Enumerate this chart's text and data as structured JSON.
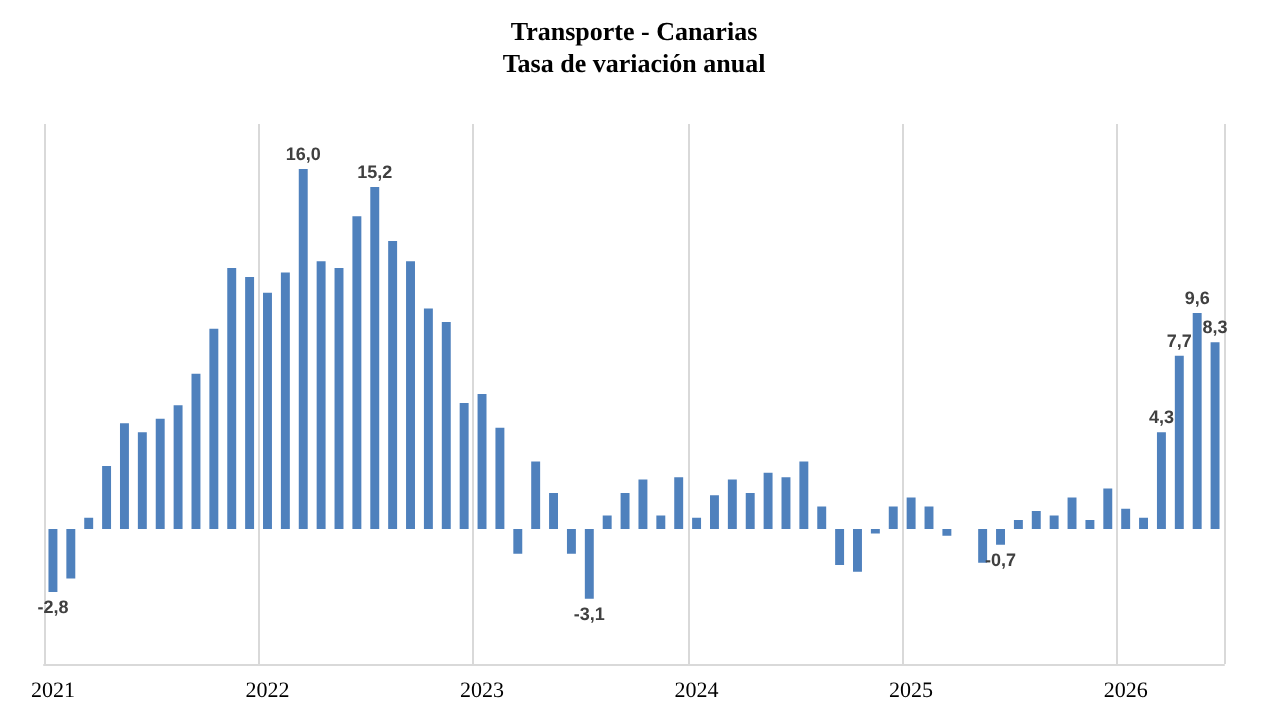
{
  "chart_data": {
    "type": "bar",
    "title": "Transporte - Canarias",
    "subtitle": "Tasa de variación anual",
    "categories": [
      "2021",
      null,
      null,
      null,
      null,
      null,
      null,
      null,
      null,
      null,
      null,
      null,
      "2022",
      null,
      null,
      null,
      null,
      null,
      null,
      null,
      null,
      null,
      null,
      null,
      "2023",
      null,
      null,
      null,
      null,
      null,
      null,
      null,
      null,
      null,
      null,
      null,
      "2024",
      null,
      null,
      null,
      null,
      null,
      null,
      null,
      null,
      null,
      null,
      null,
      "2025",
      null,
      null,
      null,
      null,
      null,
      null,
      null,
      null,
      null,
      null,
      null,
      "2026",
      null,
      null,
      null,
      null,
      null
    ],
    "values": [
      -2.8,
      -2.2,
      0.5,
      2.8,
      4.7,
      4.3,
      4.9,
      5.5,
      6.9,
      8.9,
      11.6,
      11.2,
      10.5,
      11.4,
      16.0,
      11.9,
      11.6,
      13.9,
      15.2,
      12.8,
      11.9,
      9.8,
      9.2,
      5.6,
      6.0,
      4.5,
      -1.1,
      3.0,
      1.6,
      -1.1,
      -3.1,
      0.6,
      1.6,
      2.2,
      0.6,
      2.3,
      0.5,
      1.5,
      2.2,
      1.6,
      2.5,
      2.3,
      3.0,
      1.0,
      -1.6,
      -1.9,
      -0.2,
      1.0,
      1.4,
      1.0,
      -0.3,
      0.0,
      -1.5,
      -0.7,
      0.4,
      0.8,
      0.6,
      1.4,
      0.4,
      1.8,
      0.9,
      0.5,
      4.3,
      7.7,
      9.6,
      8.3
    ],
    "value_labels": [
      "-2,8",
      null,
      null,
      null,
      null,
      null,
      null,
      null,
      null,
      null,
      null,
      null,
      null,
      null,
      "16,0",
      null,
      null,
      null,
      "15,2",
      null,
      null,
      null,
      null,
      null,
      null,
      null,
      null,
      null,
      null,
      null,
      "-3,1",
      null,
      null,
      null,
      null,
      null,
      null,
      null,
      null,
      null,
      null,
      null,
      null,
      null,
      null,
      null,
      null,
      null,
      null,
      null,
      null,
      null,
      null,
      "-0,7",
      null,
      null,
      null,
      null,
      null,
      null,
      null,
      null,
      "4,3",
      "7,7",
      "9,6",
      "8,3"
    ],
    "color": "#4f81bd",
    "grid": "x",
    "tick_labels": "x"
  }
}
